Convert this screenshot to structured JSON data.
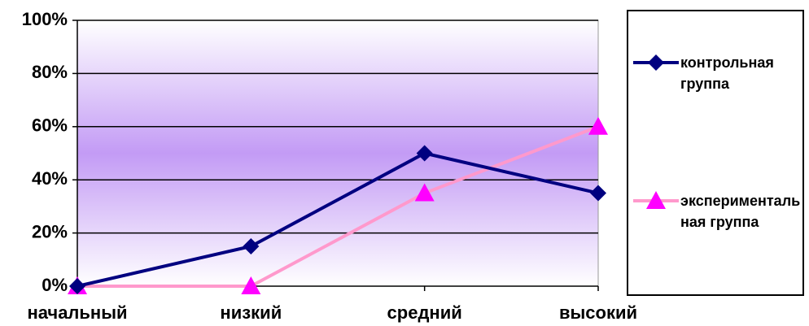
{
  "chart_data": {
    "type": "line",
    "categories": [
      "начальный",
      "низкий",
      "средний",
      "высокий"
    ],
    "series": [
      {
        "name": "контрольная группа",
        "color": "#000080",
        "marker": "diamond",
        "values": [
          0,
          15,
          50,
          35
        ]
      },
      {
        "name": "экспериментальная группа",
        "color": "#ff99cc",
        "marker_color": "#ff00ff",
        "marker": "triangle",
        "values": [
          0,
          0,
          35,
          60
        ]
      }
    ],
    "ylim": [
      0,
      100
    ],
    "yticks": [
      {
        "value": 0,
        "label": "0%"
      },
      {
        "value": 20,
        "label": "20%"
      },
      {
        "value": 40,
        "label": "40%"
      },
      {
        "value": 60,
        "label": "60%"
      },
      {
        "value": 80,
        "label": "80%"
      },
      {
        "value": 100,
        "label": "100%"
      }
    ],
    "grid": true,
    "legend": "right"
  }
}
